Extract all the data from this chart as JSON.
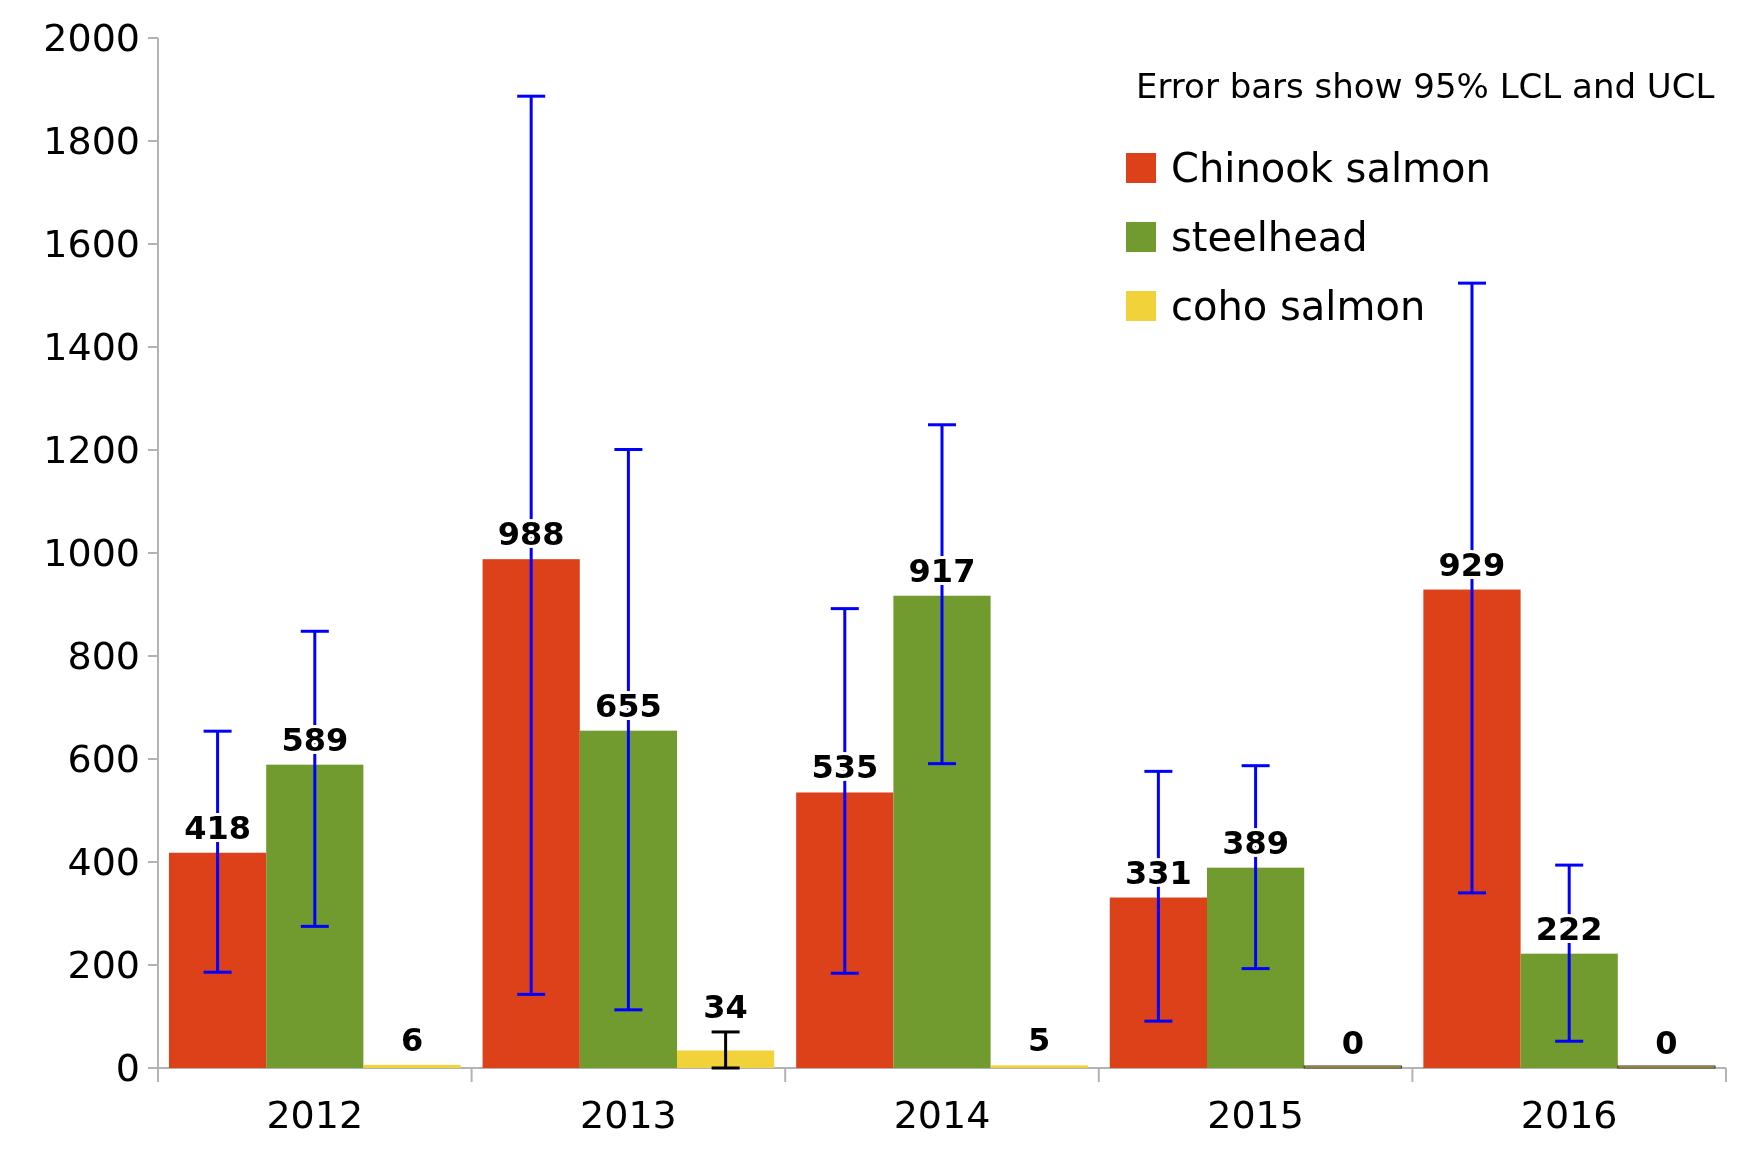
{
  "chart_data": {
    "type": "bar",
    "categories": [
      "2012",
      "2013",
      "2014",
      "2015",
      "2016"
    ],
    "series": [
      {
        "name": "Chinook salmon",
        "color": "#dd4119",
        "values": [
          418,
          988,
          535,
          331,
          929
        ],
        "errors": [
          [
            186,
            654
          ],
          [
            143,
            1887
          ],
          [
            184,
            892
          ],
          [
            91,
            576
          ],
          [
            340,
            1524
          ]
        ]
      },
      {
        "name": "steelhead",
        "color": "#729b2f",
        "values": [
          589,
          655,
          917,
          389,
          222
        ],
        "errors": [
          [
            275,
            848
          ],
          [
            113,
            1201
          ],
          [
            591,
            1249
          ],
          [
            193,
            587
          ],
          [
            52,
            394
          ]
        ]
      },
      {
        "name": "coho salmon",
        "color": "#f2d23a",
        "values": [
          6,
          34,
          5,
          0,
          0
        ],
        "errors": [
          null,
          [
            0,
            70
          ],
          null,
          null,
          null
        ]
      }
    ],
    "ylim": [
      0,
      2000
    ],
    "yticks": [
      0,
      200,
      400,
      600,
      800,
      1000,
      1200,
      1400,
      1600,
      1800,
      2000
    ],
    "legend_title": "Error bars show 95% LCL and UCL",
    "legend": "top right",
    "data_labels": true
  }
}
